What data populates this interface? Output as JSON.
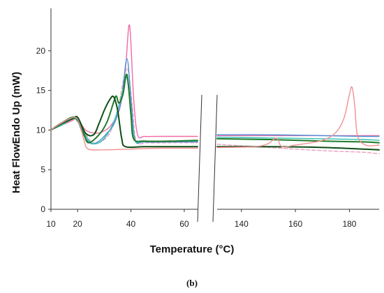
{
  "chart_data": {
    "type": "line",
    "caption": "(b)",
    "xlabel": "Temperature (°C)",
    "ylabel": "Heat FlowEndo Up (mW)",
    "ylim": [
      0,
      25
    ],
    "yticks": [
      0,
      5,
      10,
      15,
      20
    ],
    "grid": false,
    "legend": "none",
    "x_axis_break": true,
    "segments": [
      {
        "xlim": [
          10,
          65
        ],
        "xticks": [
          10,
          20,
          40,
          60
        ]
      },
      {
        "xlim": [
          131,
          191
        ],
        "xticks": [
          140,
          160,
          180
        ]
      }
    ],
    "series": [
      {
        "color": "#f06aa6",
        "left": [
          [
            10,
            10
          ],
          [
            14,
            10.6
          ],
          [
            18,
            11.2
          ],
          [
            20,
            11.4
          ],
          [
            23,
            10
          ],
          [
            27,
            9.6
          ],
          [
            30,
            9.9
          ],
          [
            33,
            10.8
          ],
          [
            36,
            13
          ],
          [
            38,
            18
          ],
          [
            39.5,
            23.2
          ],
          [
            41,
            14
          ],
          [
            42.5,
            9.4
          ],
          [
            45,
            9.2
          ],
          [
            50,
            9.2
          ],
          [
            60,
            9.2
          ],
          [
            65,
            9.2
          ]
        ],
        "right": [
          [
            131,
            9.3
          ],
          [
            150,
            9.3
          ],
          [
            170,
            9.3
          ],
          [
            185,
            9.3
          ],
          [
            191,
            9.3
          ]
        ]
      },
      {
        "color": "#e8a0c0",
        "dashed": true,
        "left": [
          [
            10,
            10
          ],
          [
            14,
            10.7
          ],
          [
            19,
            11.3
          ],
          [
            22,
            10
          ],
          [
            25,
            8.6
          ],
          [
            28,
            8.4
          ],
          [
            32,
            9.6
          ],
          [
            35,
            12.5
          ],
          [
            37.5,
            16.8
          ],
          [
            39,
            17.5
          ],
          [
            40.5,
            13
          ],
          [
            42,
            8.6
          ],
          [
            46,
            8.4
          ],
          [
            55,
            8.4
          ],
          [
            65,
            8.4
          ]
        ],
        "right": [
          [
            131,
            8.2
          ],
          [
            150,
            7.8
          ],
          [
            170,
            7.4
          ],
          [
            185,
            7.2
          ],
          [
            191,
            7.0
          ]
        ]
      },
      {
        "color": "#4a8fd6",
        "left": [
          [
            10,
            10
          ],
          [
            14,
            10.8
          ],
          [
            19,
            11.6
          ],
          [
            22,
            9.5
          ],
          [
            25,
            8.3
          ],
          [
            28,
            8.6
          ],
          [
            31,
            9.6
          ],
          [
            34,
            11
          ],
          [
            36.5,
            14
          ],
          [
            38.5,
            19
          ],
          [
            40,
            14
          ],
          [
            41.5,
            8.8
          ],
          [
            45,
            8.5
          ],
          [
            55,
            8.5
          ],
          [
            65,
            8.5
          ]
        ],
        "right": [
          [
            131,
            9.4
          ],
          [
            150,
            9.4
          ],
          [
            170,
            9.3
          ],
          [
            185,
            9.2
          ],
          [
            191,
            9.2
          ]
        ]
      },
      {
        "color": "#33c0b0",
        "left": [
          [
            10,
            10
          ],
          [
            14,
            10.6
          ],
          [
            19,
            11.4
          ],
          [
            22,
            9.8
          ],
          [
            25,
            8.4
          ],
          [
            28,
            8.4
          ],
          [
            31,
            9.4
          ],
          [
            34,
            11.4
          ],
          [
            37,
            15
          ],
          [
            38.5,
            16.6
          ],
          [
            40,
            12.5
          ],
          [
            41.5,
            8.7
          ],
          [
            45,
            8.6
          ],
          [
            55,
            8.6
          ],
          [
            65,
            8.6
          ]
        ],
        "right": [
          [
            131,
            9.1
          ],
          [
            150,
            9.0
          ],
          [
            170,
            8.9
          ],
          [
            185,
            8.8
          ],
          [
            191,
            8.7
          ]
        ]
      },
      {
        "color": "#1f7a2a",
        "left": [
          [
            10,
            10
          ],
          [
            14,
            10.9
          ],
          [
            19,
            11.6
          ],
          [
            22,
            9.8
          ],
          [
            24,
            8.4
          ],
          [
            28,
            9.4
          ],
          [
            31,
            11
          ],
          [
            33.5,
            13.5
          ],
          [
            34.5,
            14.3
          ],
          [
            35.5,
            13.4
          ],
          [
            37,
            14.5
          ],
          [
            38.5,
            17
          ],
          [
            40,
            12
          ],
          [
            41,
            8.9
          ],
          [
            45,
            8.6
          ],
          [
            55,
            8.6
          ],
          [
            65,
            8.7
          ]
        ],
        "right": [
          [
            131,
            8.9
          ],
          [
            150,
            8.8
          ],
          [
            170,
            8.6
          ],
          [
            185,
            8.5
          ],
          [
            191,
            8.4
          ]
        ]
      },
      {
        "color": "#0e4e14",
        "left": [
          [
            10,
            10
          ],
          [
            14,
            10.8
          ],
          [
            18,
            11.4
          ],
          [
            20,
            11.6
          ],
          [
            23,
            9.6
          ],
          [
            26,
            9.4
          ],
          [
            28,
            10.8
          ],
          [
            30,
            12.5
          ],
          [
            32,
            13.8
          ],
          [
            33.5,
            14.2
          ],
          [
            35,
            12.5
          ],
          [
            36.5,
            9
          ],
          [
            38,
            7.9
          ],
          [
            45,
            7.9
          ],
          [
            55,
            7.9
          ],
          [
            65,
            7.9
          ]
        ],
        "right": [
          [
            131,
            7.9
          ],
          [
            150,
            7.9
          ],
          [
            170,
            7.8
          ],
          [
            185,
            7.6
          ],
          [
            191,
            7.5
          ]
        ]
      },
      {
        "color": "#f29090",
        "left": [
          [
            10,
            10
          ],
          [
            14,
            10.9
          ],
          [
            19,
            11.6
          ],
          [
            21,
            10.5
          ],
          [
            22.5,
            8.6
          ],
          [
            24,
            7.6
          ],
          [
            30,
            7.5
          ],
          [
            40,
            7.6
          ],
          [
            50,
            7.7
          ],
          [
            65,
            7.7
          ]
        ],
        "right": [
          [
            131,
            7.8
          ],
          [
            145,
            7.9
          ],
          [
            150,
            8.3
          ],
          [
            153,
            9.0
          ],
          [
            155,
            7.9
          ],
          [
            160,
            8.1
          ],
          [
            170,
            8.7
          ],
          [
            175,
            9.7
          ],
          [
            178,
            11.5
          ],
          [
            180,
            14.5
          ],
          [
            181,
            15.4
          ],
          [
            182,
            13
          ],
          [
            183,
            9.3
          ],
          [
            186,
            8.1
          ],
          [
            191,
            8.1
          ]
        ]
      }
    ]
  }
}
